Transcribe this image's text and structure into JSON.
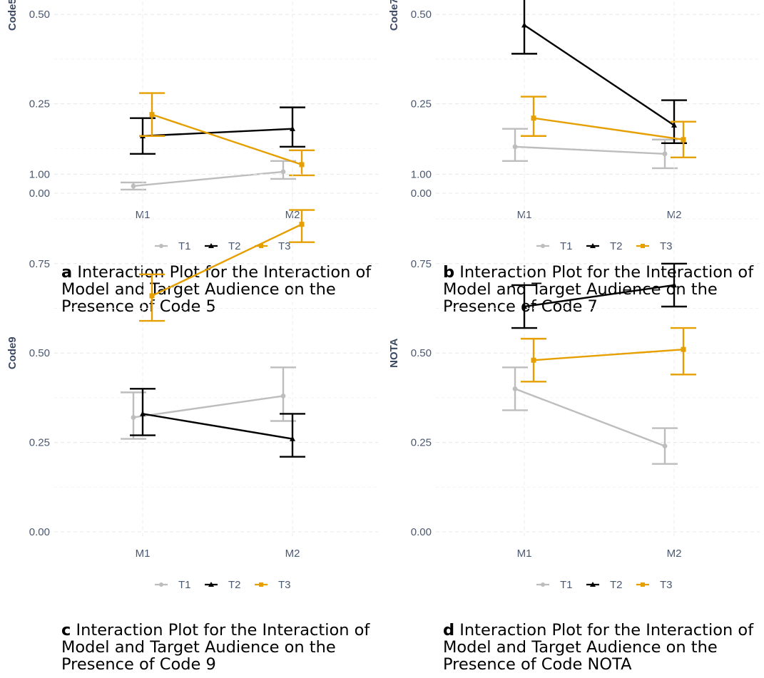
{
  "charts": [
    {
      "letter": "a",
      "caption": "Interaction Plot for the Interaction of Model and Target Audience on the Presence of Code 5",
      "chart_data": {
        "type": "line",
        "ylabel": "Code5",
        "xlabel": "",
        "ylim": [
          0,
          1
        ],
        "yticks": [
          "0.00",
          "0.25",
          "0.50",
          "0.75",
          "1.00"
        ],
        "categories": [
          "M1",
          "M2"
        ],
        "series": [
          {
            "name": "T1",
            "color": "#bdbdbd",
            "values": [
              0.02,
              0.06
            ],
            "lower": [
              0.01,
              0.04
            ],
            "upper": [
              0.03,
              0.09
            ]
          },
          {
            "name": "T2",
            "color": "#000000",
            "values": [
              0.16,
              0.18
            ],
            "lower": [
              0.11,
              0.13
            ],
            "upper": [
              0.21,
              0.24
            ]
          },
          {
            "name": "T3",
            "color": "#e69f00",
            "values": [
              0.22,
              0.08
            ],
            "lower": [
              0.16,
              0.05
            ],
            "upper": [
              0.28,
              0.12
            ]
          }
        ],
        "grid": true,
        "legend": "bottom"
      }
    },
    {
      "letter": "b",
      "caption": "Interaction Plot for the Interaction of Model and Target Audience on the Presence of Code 7",
      "chart_data": {
        "type": "line",
        "ylabel": "Code7",
        "xlabel": "",
        "ylim": [
          0,
          1
        ],
        "yticks": [
          "0.00",
          "0.25",
          "0.50",
          "0.75",
          "1.00"
        ],
        "categories": [
          "M1",
          "M2"
        ],
        "series": [
          {
            "name": "T1",
            "color": "#bdbdbd",
            "values": [
              0.13,
              0.11
            ],
            "lower": [
              0.09,
              0.07
            ],
            "upper": [
              0.18,
              0.15
            ]
          },
          {
            "name": "T2",
            "color": "#000000",
            "values": [
              0.47,
              0.19
            ],
            "lower": [
              0.39,
              0.14
            ],
            "upper": [
              0.55,
              0.26
            ]
          },
          {
            "name": "T3",
            "color": "#e69f00",
            "values": [
              0.21,
              0.15
            ],
            "lower": [
              0.16,
              0.1
            ],
            "upper": [
              0.27,
              0.2
            ]
          }
        ],
        "grid": true,
        "legend": "bottom"
      }
    },
    {
      "letter": "c",
      "caption": "Interaction Plot for the Interaction of Model and Target Audience on the Presence of Code 9",
      "chart_data": {
        "type": "line",
        "ylabel": "Code9",
        "xlabel": "",
        "ylim": [
          0,
          1
        ],
        "yticks": [
          "0.00",
          "0.25",
          "0.50",
          "0.75",
          "1.00"
        ],
        "categories": [
          "M1",
          "M2"
        ],
        "series": [
          {
            "name": "T1",
            "color": "#bdbdbd",
            "values": [
              0.32,
              0.38
            ],
            "lower": [
              0.26,
              0.31
            ],
            "upper": [
              0.39,
              0.46
            ]
          },
          {
            "name": "T2",
            "color": "#000000",
            "values": [
              0.33,
              0.26
            ],
            "lower": [
              0.27,
              0.21
            ],
            "upper": [
              0.4,
              0.33
            ]
          },
          {
            "name": "T3",
            "color": "#e69f00",
            "values": [
              0.66,
              0.86
            ],
            "lower": [
              0.59,
              0.81
            ],
            "upper": [
              0.72,
              0.9
            ]
          }
        ],
        "grid": true,
        "legend": "bottom"
      }
    },
    {
      "letter": "d",
      "caption": "Interaction Plot for the Interaction of Model and Target Audience on the Presence of Code NOTA",
      "chart_data": {
        "type": "line",
        "ylabel": "NOTA",
        "xlabel": "",
        "ylim": [
          0,
          1
        ],
        "yticks": [
          "0.00",
          "0.25",
          "0.50",
          "0.75",
          "1.00"
        ],
        "categories": [
          "M1",
          "M2"
        ],
        "series": [
          {
            "name": "T1",
            "color": "#bdbdbd",
            "values": [
              0.4,
              0.24
            ],
            "lower": [
              0.34,
              0.19
            ],
            "upper": [
              0.46,
              0.29
            ]
          },
          {
            "name": "T2",
            "color": "#000000",
            "values": [
              0.63,
              0.69
            ],
            "lower": [
              0.57,
              0.63
            ],
            "upper": [
              0.69,
              0.75
            ]
          },
          {
            "name": "T3",
            "color": "#e69f00",
            "values": [
              0.48,
              0.51
            ],
            "lower": [
              0.42,
              0.44
            ],
            "upper": [
              0.54,
              0.57
            ]
          }
        ],
        "grid": true,
        "legend": "bottom"
      }
    }
  ]
}
